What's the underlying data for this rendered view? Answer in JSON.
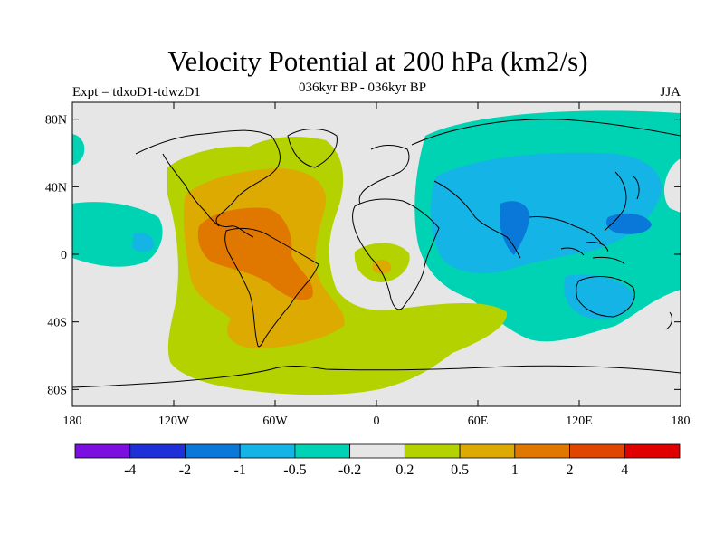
{
  "title": "Velocity Potential at 200 hPa (km2/s)",
  "subtitle": "036kyr BP - 036kyr BP",
  "left_label": "Expt = tdxoD1-tdwzD1",
  "right_label": "JJA",
  "map": {
    "lon_ticks": [
      "180",
      "120W",
      "60W",
      "0",
      "60E",
      "120E",
      "180"
    ],
    "lat_ticks": [
      "80N",
      "40N",
      "0",
      "40S",
      "80S"
    ]
  },
  "colorbar": {
    "labels": [
      "-4",
      "-2",
      "-1",
      "-0.5",
      "-0.2",
      "0.2",
      "0.5",
      "1",
      "2",
      "4"
    ],
    "colors": [
      "#7a0fe0",
      "#2030d8",
      "#0a78d8",
      "#14b4e6",
      "#00d2b4",
      "#e6e6e6",
      "#b4d200",
      "#dcaa00",
      "#e07800",
      "#e04600",
      "#e00000"
    ]
  }
}
